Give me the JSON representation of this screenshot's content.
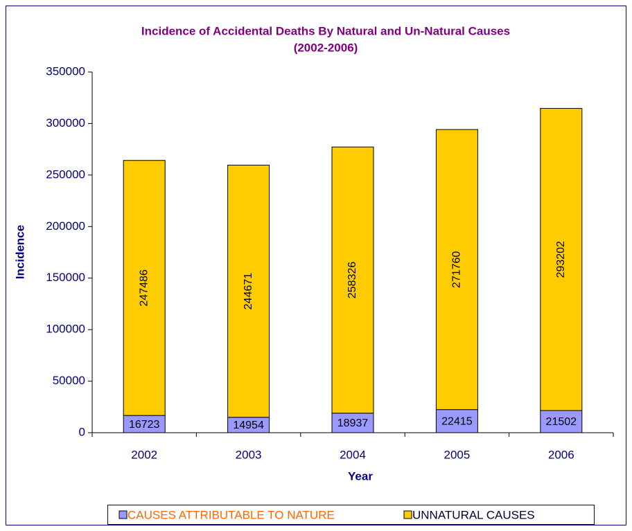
{
  "chart_data": {
    "type": "stacked_bar",
    "title": "Incidence of Accidental Deaths By Natural and Un-Natural Causes",
    "subtitle": "(2002-2006)",
    "x_label": "Year",
    "y_label": "Incidence",
    "categories": [
      "2002",
      "2003",
      "2004",
      "2005",
      "2006"
    ],
    "series": [
      {
        "name": "CAUSES ATTRIBUTABLE TO NATURE",
        "color": "#9999ff",
        "values": [
          16723,
          14954,
          18937,
          22415,
          21502
        ]
      },
      {
        "name": "UNNATURAL CAUSES",
        "color": "#ffcc00",
        "values": [
          247486,
          244671,
          258326,
          271760,
          293202
        ]
      }
    ],
    "ylim": [
      0,
      350000
    ],
    "yticks": [
      0,
      50000,
      100000,
      150000,
      200000,
      250000,
      300000,
      350000
    ],
    "grid": false,
    "legend": "bottom"
  }
}
